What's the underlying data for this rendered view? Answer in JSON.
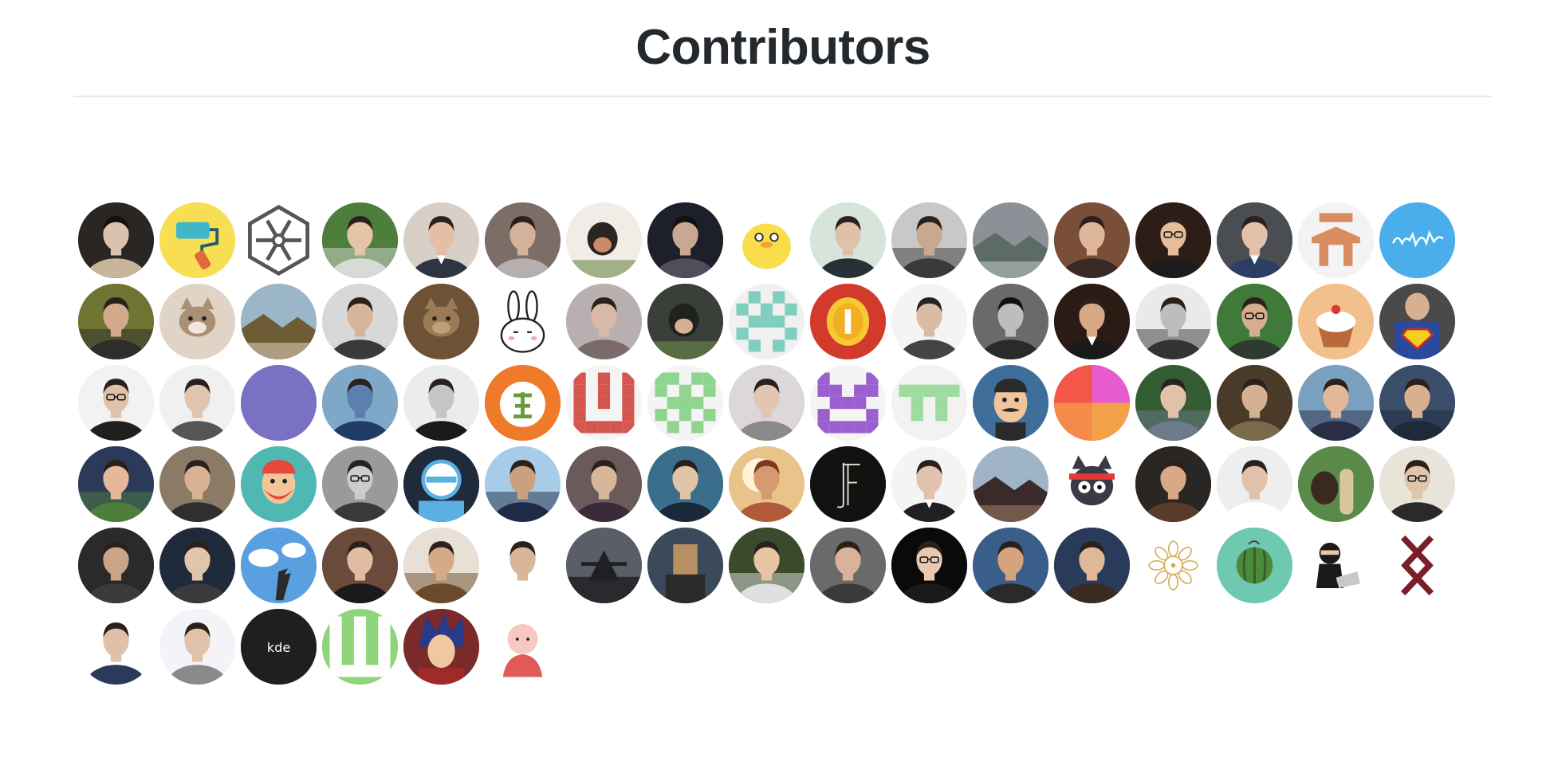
{
  "title": "Contributors",
  "avatar_labels": {
    "kde": "kde"
  },
  "contributors": [
    {
      "icon": "portrait-dark-icon",
      "bg": "#2a2624",
      "fg": "#c9b59a",
      "skin": "#d9c3ae"
    },
    {
      "icon": "paint-roller-icon",
      "bg": "#f8de52",
      "fg": "#3eb8c8",
      "skin": "#e06a3a"
    },
    {
      "icon": "hexagon-flower-icon",
      "bg": "#ffffff",
      "fg": "#555555",
      "skin": "#555555"
    },
    {
      "icon": "portrait-outdoor-icon",
      "bg": "#4e7e3b",
      "fg": "#d8dad6",
      "skin": "#e6c4a8"
    },
    {
      "icon": "portrait-suit-icon",
      "bg": "#d8cfc6",
      "fg": "#2d3442",
      "skin": "#e3bfa6"
    },
    {
      "icon": "portrait-icon",
      "bg": "#7c6e66",
      "fg": "#b5b0ae",
      "skin": "#d4b19a"
    },
    {
      "icon": "dog-photo-icon",
      "bg": "#f1ece6",
      "fg": "#2b2422",
      "skin": "#c98b68"
    },
    {
      "icon": "portrait-dark-icon",
      "bg": "#1d1f2b",
      "fg": "#504e5a",
      "skin": "#c8a893"
    },
    {
      "icon": "yellow-duck-icon",
      "bg": "#ffffff",
      "fg": "#f9dd4a",
      "skin": "#333333"
    },
    {
      "icon": "portrait-icon",
      "bg": "#d7e4dc",
      "fg": "#263036",
      "skin": "#dfc0a8"
    },
    {
      "icon": "portrait-outdoor-icon",
      "bg": "#c8c8c8",
      "fg": "#3a3a3a",
      "skin": "#caa78f"
    },
    {
      "icon": "landscape-photo-icon",
      "bg": "#8b9196",
      "fg": "#5d6b66",
      "skin": "#b9c3c4"
    },
    {
      "icon": "portrait-icon",
      "bg": "#7a4f3a",
      "fg": "#3a2a24",
      "skin": "#e0b69a"
    },
    {
      "icon": "portrait-glasses-icon",
      "bg": "#2c1e16",
      "fg": "#1c1c1c",
      "skin": "#e5bd98"
    },
    {
      "icon": "portrait-suit-icon",
      "bg": "#4a4e52",
      "fg": "#2b3e66",
      "skin": "#e3c1a8"
    },
    {
      "icon": "orange-glyph-icon",
      "bg": "#f3f3f3",
      "fg": "#d98c5f",
      "skin": "#d98c5f"
    },
    {
      "icon": "blue-scribble-icon",
      "bg": "#4aaeea",
      "fg": "#ffffff",
      "skin": "#ffffff"
    },
    {
      "icon": "portrait-outdoor-icon",
      "bg": "#6f7433",
      "fg": "#2d2e2c",
      "skin": "#d2a98a"
    },
    {
      "icon": "cat-photo-icon",
      "bg": "#e0d4c6",
      "fg": "#ab8f72",
      "skin": "#f0e6dc"
    },
    {
      "icon": "landscape-photo-icon",
      "bg": "#9bb6c9",
      "fg": "#6e5c36",
      "skin": "#d8c8b0"
    },
    {
      "icon": "portrait-icon",
      "bg": "#d8d8d8",
      "fg": "#3a3a3a",
      "skin": "#d7b59c"
    },
    {
      "icon": "cat-photo-icon",
      "bg": "#6e5236",
      "fg": "#9a7b56",
      "skin": "#c0a07a"
    },
    {
      "icon": "bunny-icon",
      "bg": "#ffffff",
      "fg": "#222222",
      "skin": "#f3a7b3"
    },
    {
      "icon": "portrait-icon",
      "bg": "#b8b0b0",
      "fg": "#7a6a6a",
      "skin": "#d8b8a8"
    },
    {
      "icon": "dog-photo-icon",
      "bg": "#3b3f3a",
      "fg": "#1f221f",
      "skin": "#d5b095"
    },
    {
      "icon": "identicon-teal-icon",
      "bg": "#f0f0f0",
      "fg": "#7fcfc0",
      "skin": "#7fcfc0"
    },
    {
      "icon": "gold-coin-icon",
      "bg": "#d23a2c",
      "fg": "#f8c832",
      "skin": "#ffffff"
    },
    {
      "icon": "portrait-icon",
      "bg": "#f4f4f4",
      "fg": "#444444",
      "skin": "#d8bca6"
    },
    {
      "icon": "portrait-dark-icon",
      "bg": "#6a6a6a",
      "fg": "#2a2a2a",
      "skin": "#bdbdbd"
    },
    {
      "icon": "portrait-suit-icon",
      "bg": "#2a1c14",
      "fg": "#1a1a1a",
      "skin": "#d6a883"
    },
    {
      "icon": "portrait-outdoor-icon",
      "bg": "#eaeaea",
      "fg": "#333333",
      "skin": "#bdbdbd"
    },
    {
      "icon": "portrait-glasses-icon",
      "bg": "#3f7a3a",
      "fg": "#2e3b2e",
      "skin": "#d8ad8f"
    },
    {
      "icon": "cupcake-icon",
      "bg": "#f2c08c",
      "fg": "#b86a3a",
      "skin": "#ffffff"
    },
    {
      "icon": "superman-icon",
      "bg": "#4a4a4a",
      "fg": "#c42d2d",
      "skin": "#f5d020"
    },
    {
      "icon": "portrait-glasses-icon",
      "bg": "#f2f2f2",
      "fg": "#1f1f1f",
      "skin": "#e0c2aa"
    },
    {
      "icon": "portrait-icon",
      "bg": "#f0f0f0",
      "fg": "#555555",
      "skin": "#e0c4ae"
    },
    {
      "icon": "solid-purple-icon",
      "bg": "#7b71c4",
      "fg": "#7b71c4",
      "skin": "#7b71c4"
    },
    {
      "icon": "portrait-icon",
      "bg": "#7fa8c8",
      "fg": "#1f3b66",
      "skin": "#5c7fb0"
    },
    {
      "icon": "portrait-icon",
      "bg": "#ececec",
      "fg": "#1a1a1a",
      "skin": "#c5c5c5"
    },
    {
      "icon": "orange-char-icon",
      "bg": "#ef7a2a",
      "fg": "#ffffff",
      "skin": "#6a9b3a"
    },
    {
      "icon": "identicon-red-icon",
      "bg": "#f4f4f4",
      "fg": "#d4574f",
      "skin": "#d4574f"
    },
    {
      "icon": "identicon-green-icon",
      "bg": "#f4f4f4",
      "fg": "#8fd48f",
      "skin": "#8fd48f"
    },
    {
      "icon": "portrait-icon",
      "bg": "#dcd8da",
      "fg": "#8a8a8a",
      "skin": "#e2c6b2"
    },
    {
      "icon": "identicon-purple-icon",
      "bg": "#f4f4f4",
      "fg": "#9b5fcf",
      "skin": "#9b5fcf"
    },
    {
      "icon": "identicon-lightgreen-icon",
      "bg": "#f2f2f2",
      "fg": "#9edb9e",
      "skin": "#9edb9e"
    },
    {
      "icon": "cartoon-mustache-icon",
      "bg": "#3e6e99",
      "fg": "#2a2a2a",
      "skin": "#f2c49a"
    },
    {
      "icon": "gradient-pie-icon",
      "bg": "#f5564a",
      "fg": "#f4a24a",
      "skin": "#e85ad0"
    },
    {
      "icon": "portrait-outdoor-icon",
      "bg": "#335c33",
      "fg": "#6c7a8a",
      "skin": "#e0c2aa"
    },
    {
      "icon": "portrait-icon",
      "bg": "#4a3a2a",
      "fg": "#7a6a4a",
      "skin": "#d6b092"
    },
    {
      "icon": "portrait-outdoor-icon",
      "bg": "#7aa0c0",
      "fg": "#2a2e44",
      "skin": "#e2b898"
    },
    {
      "icon": "portrait-outdoor-icon",
      "bg": "#3a4e6a",
      "fg": "#1e2a3a",
      "skin": "#d9b08f"
    },
    {
      "icon": "portrait-outdoor-icon",
      "bg": "#2c3a5a",
      "fg": "#4e7e3e",
      "skin": "#e4b898"
    },
    {
      "icon": "portrait-icon",
      "bg": "#8a7a66",
      "fg": "#2f2f2f",
      "skin": "#d8b292"
    },
    {
      "icon": "cartoon-beard-icon",
      "bg": "#4fb8b2",
      "fg": "#e8483a",
      "skin": "#f5c59a"
    },
    {
      "icon": "portrait-glasses-icon",
      "bg": "#9a9a9a",
      "fg": "#3a3a3a",
      "skin": "#cccccc"
    },
    {
      "icon": "blue-badge-icon",
      "bg": "#1f2a3a",
      "fg": "#5ab0e0",
      "skin": "#ffffff"
    },
    {
      "icon": "portrait-outdoor-icon",
      "bg": "#a8cce8",
      "fg": "#1f2a44",
      "skin": "#caa07f"
    },
    {
      "icon": "portrait-icon",
      "bg": "#6a5a5a",
      "fg": "#3a2a3a",
      "skin": "#d8b69a"
    },
    {
      "icon": "portrait-icon",
      "bg": "#3a6e8a",
      "fg": "#1a2a3a",
      "skin": "#e0c4a8"
    },
    {
      "icon": "sunlight-photo-icon",
      "bg": "#e8c48a",
      "fg": "#b05a3a",
      "skin": "#fff4d8"
    },
    {
      "icon": "letter-mark-icon",
      "bg": "#121212",
      "fg": "#e8e2d0",
      "skin": "#e8e2d0"
    },
    {
      "icon": "portrait-suit-icon",
      "bg": "#f4f4f4",
      "fg": "#1f1f24",
      "skin": "#e0c2ad"
    },
    {
      "icon": "landscape-photo-icon",
      "bg": "#a0b4c8",
      "fg": "#3a2a2a",
      "skin": "#9a7a62"
    },
    {
      "icon": "ninja-cat-icon",
      "bg": "#ffffff",
      "fg": "#3a3a44",
      "skin": "#e03a3a"
    },
    {
      "icon": "portrait-icon",
      "bg": "#2a2624",
      "fg": "#5a3a2a",
      "skin": "#d9a887"
    },
    {
      "icon": "portrait-icon",
      "bg": "#eeeeee",
      "fg": "#ffffff",
      "skin": "#e0c2aa"
    },
    {
      "icon": "horse-photo-icon",
      "bg": "#5a8a4a",
      "fg": "#3a2a22",
      "skin": "#a0c870"
    },
    {
      "icon": "portrait-glasses-icon",
      "bg": "#e8e4da",
      "fg": "#2a2a2a",
      "skin": "#e0c4ac"
    },
    {
      "icon": "portrait-icon",
      "bg": "#2a2a2a",
      "fg": "#3a3a3a",
      "skin": "#caa486"
    },
    {
      "icon": "portrait-icon",
      "bg": "#1f2a3a",
      "fg": "#3a3a3a",
      "skin": "#e0c4ac"
    },
    {
      "icon": "sky-hand-icon",
      "bg": "#5aa0e0",
      "fg": "#ffffff",
      "skin": "#2a2a2a"
    },
    {
      "icon": "portrait-icon",
      "bg": "#6a4a3a",
      "fg": "#1a1a1a",
      "skin": "#e0bca0"
    },
    {
      "icon": "portrait-outdoor-icon",
      "bg": "#e8e0d6",
      "fg": "#6a4a2a",
      "skin": "#d6aa86"
    },
    {
      "icon": "portrait-suit-icon",
      "bg": "#ffffff",
      "fg": "#ffffff",
      "skin": "#d8b69a"
    },
    {
      "icon": "night-photo-icon",
      "bg": "#5a5e66",
      "fg": "#1f1f24",
      "skin": "#c8c8c8"
    },
    {
      "icon": "pixel-figure-icon",
      "bg": "#3a4a5a",
      "fg": "#b89064",
      "skin": "#2a2a2a"
    },
    {
      "icon": "portrait-outdoor-icon",
      "bg": "#3a4a2a",
      "fg": "#e0e0e0",
      "skin": "#e8c4a4"
    },
    {
      "icon": "portrait-icon",
      "bg": "#6a6a6a",
      "fg": "#3a3a3a",
      "skin": "#d8b29a"
    },
    {
      "icon": "portrait-glasses-icon",
      "bg": "#0a0a0a",
      "fg": "#1a1a1a",
      "skin": "#e8c8b0"
    },
    {
      "icon": "portrait-icon",
      "bg": "#3a5e8a",
      "fg": "#2a2a2a",
      "skin": "#d4a47f"
    },
    {
      "icon": "portrait-icon",
      "bg": "#2a3a5a",
      "fg": "#3a2a22",
      "skin": "#e0b898"
    },
    {
      "icon": "mandala-icon",
      "bg": "#ffffff",
      "fg": "#d6a84a",
      "skin": "#d6a84a"
    },
    {
      "icon": "watermelon-icon",
      "bg": "#6fc9b0",
      "fg": "#4a8a3a",
      "skin": "#3a5a2a"
    },
    {
      "icon": "ninja-laptop-icon",
      "bg": "#ffffff",
      "fg": "#1a1a1a",
      "skin": "#c8c8c8"
    },
    {
      "icon": "dark-red-glyph-icon",
      "bg": "#ffffff",
      "fg": "#7a1f2a",
      "skin": "#7a1f2a"
    },
    {
      "icon": "portrait-icon",
      "bg": "#ffffff",
      "fg": "#2a3a5a",
      "skin": "#e0c0a8"
    },
    {
      "icon": "portrait-icon",
      "bg": "#f4f4f8",
      "fg": "#8a8a8a",
      "skin": "#e0c2aa"
    },
    {
      "icon": "kde-logo-icon",
      "bg": "#1f1f1f",
      "fg": "#ffffff",
      "skin": "#ffffff",
      "label": "kde"
    },
    {
      "icon": "identicon-w-icon",
      "bg": "#8fd47a",
      "fg": "#ffffff",
      "skin": "#ffffff"
    },
    {
      "icon": "anime-character-icon",
      "bg": "#7a2a2a",
      "fg": "#2a3a8a",
      "skin": "#f0c8a0"
    },
    {
      "icon": "baby-cartoon-icon",
      "bg": "#ffffff",
      "fg": "#e05a5a",
      "skin": "#f5c8c0"
    }
  ]
}
